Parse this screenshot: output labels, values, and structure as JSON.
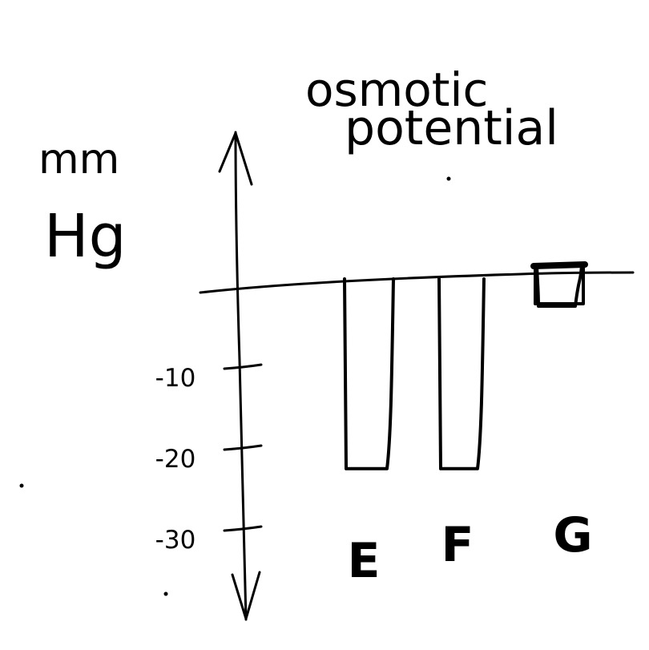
{
  "colors": {
    "ink": "#000000",
    "background": "#ffffff"
  },
  "chart_data": {
    "type": "bar",
    "title": "osmotic\npotential",
    "ylabel": "mm Hg",
    "categories": [
      "E",
      "F",
      "G"
    ],
    "series": [
      {
        "values": [
          -22,
          -22,
          -2.5
        ]
      }
    ],
    "y_ticks": [
      -10,
      -20,
      -30
    ],
    "y_tick_labels": [
      "-10",
      "-20",
      "-30"
    ],
    "ylim": [
      -38,
      18
    ],
    "grid": false,
    "legend": "none"
  }
}
